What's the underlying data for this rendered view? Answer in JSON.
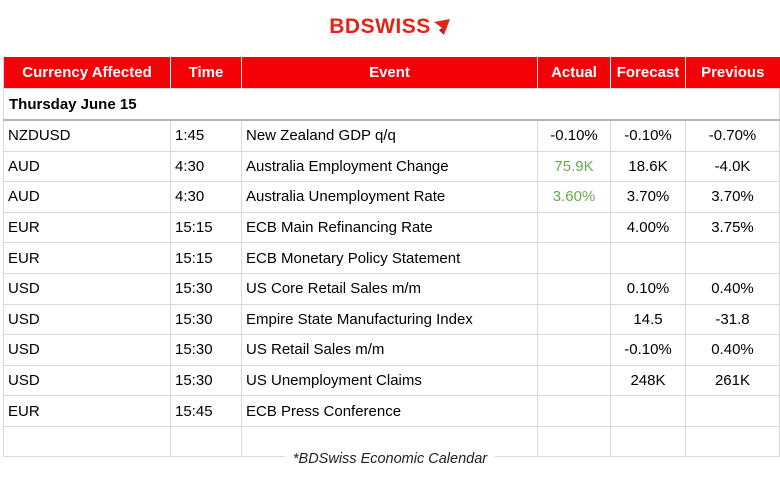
{
  "brand": {
    "name": "BDSWISS",
    "color": "#e1251b",
    "mark_icon": "chevron-arrow-icon"
  },
  "table": {
    "headers": [
      "Currency Affected",
      "Time",
      "Event",
      "Actual",
      "Forecast",
      "Previous"
    ],
    "header_bg": "#f50006",
    "day_label": "Thursday June 15",
    "rows": [
      {
        "currency": "NZDUSD",
        "time": "1:45",
        "event": "New Zealand GDP q/q",
        "actual": "-0.10%",
        "forecast": "-0.10%",
        "previous": "-0.70%"
      },
      {
        "currency": "AUD",
        "time": "4:30",
        "event": "Australia Employment Change",
        "actual": "75.9K",
        "forecast": "18.6K",
        "previous": "-4.0K"
      },
      {
        "currency": "AUD",
        "time": "4:30",
        "event": "Australia Unemployment Rate",
        "actual": "3.60%",
        "forecast": "3.70%",
        "previous": "3.70%"
      },
      {
        "currency": "EUR",
        "time": "15:15",
        "event": "ECB Main Refinancing Rate",
        "actual": "",
        "forecast": "4.00%",
        "previous": "3.75%"
      },
      {
        "currency": "EUR",
        "time": "15:15",
        "event": "ECB Monetary Policy Statement",
        "actual": "",
        "forecast": "",
        "previous": ""
      },
      {
        "currency": "USD",
        "time": "15:30",
        "event": "US Core Retail Sales m/m",
        "actual": "",
        "forecast": "0.10%",
        "previous": "0.40%"
      },
      {
        "currency": "USD",
        "time": "15:30",
        "event": "Empire State Manufacturing Index",
        "actual": "",
        "forecast": "14.5",
        "previous": "-31.8"
      },
      {
        "currency": "USD",
        "time": "15:30",
        "event": "US Retail Sales m/m",
        "actual": "",
        "forecast": "-0.10%",
        "previous": "0.40%"
      },
      {
        "currency": "USD",
        "time": "15:30",
        "event": "US Unemployment Claims",
        "actual": "",
        "forecast": "248K",
        "previous": "261K"
      },
      {
        "currency": "EUR",
        "time": "15:45",
        "event": "ECB Press Conference",
        "actual": "",
        "forecast": "",
        "previous": ""
      }
    ],
    "positive_actual_color": "#6aa84f"
  },
  "footer": {
    "caption": "*BDSwiss Economic Calendar"
  }
}
